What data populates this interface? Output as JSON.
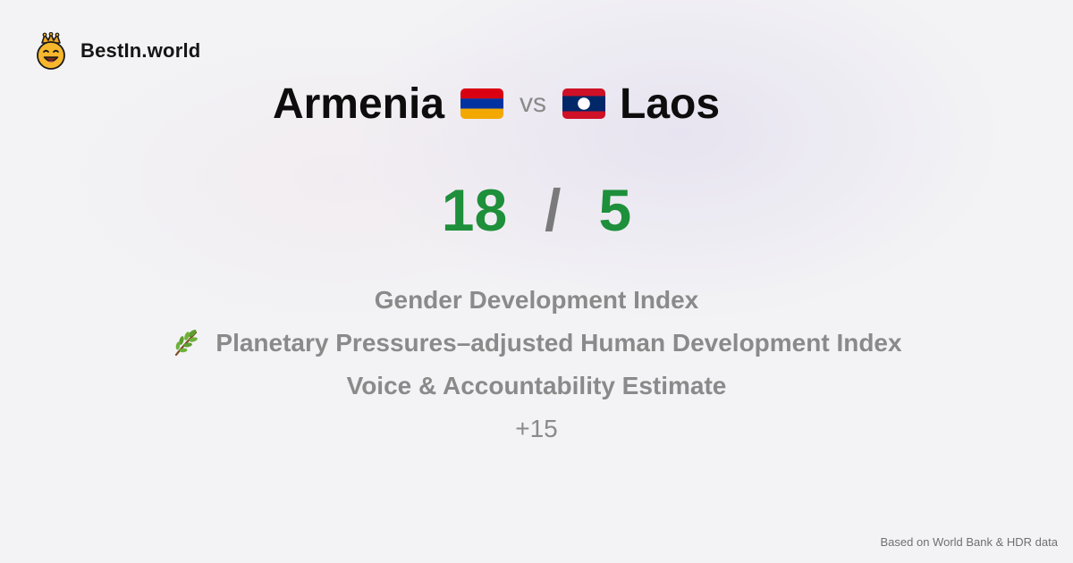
{
  "brand": {
    "name": "BestIn.world",
    "logo_icon": "smiling-crowned-face-icon"
  },
  "comparison": {
    "left_country": "Armenia",
    "left_flag": "armenia-flag-icon",
    "vs_label": "vs",
    "right_country": "Laos",
    "right_flag": "laos-flag-icon"
  },
  "scores": {
    "left": "18",
    "separator": "/",
    "right": "5",
    "score_color": "#1e8f3a"
  },
  "metrics": [
    {
      "label": "Gender Development Index",
      "icon": null
    },
    {
      "label": "Planetary Pressures–adjusted Human Development Index",
      "icon": "herb-icon"
    },
    {
      "label": "Voice & Accountability Estimate",
      "icon": null
    }
  ],
  "more_label": "+15",
  "footer": {
    "source": "Based on World Bank & HDR data"
  }
}
